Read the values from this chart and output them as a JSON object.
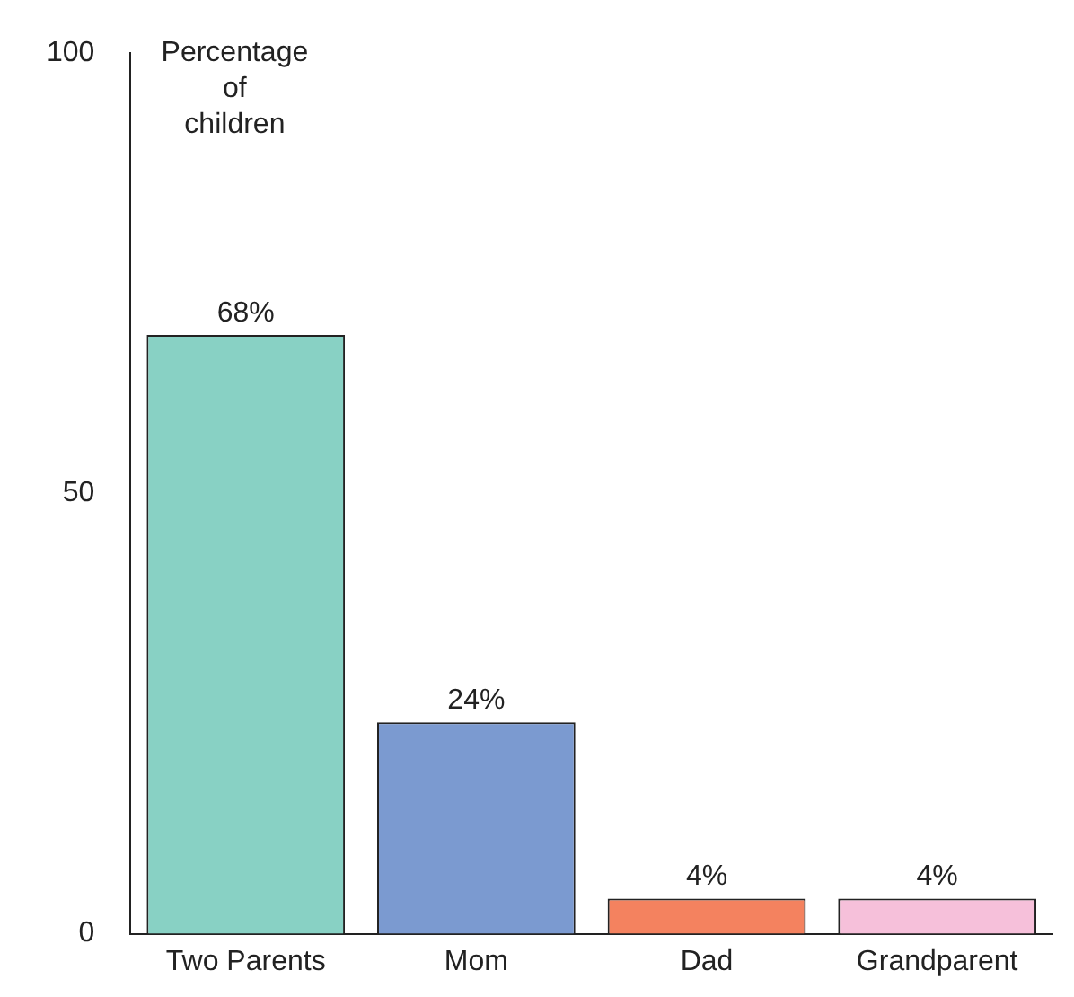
{
  "chart_data": {
    "type": "bar",
    "ylabel": "Percentage\nof\nchildren",
    "categories": [
      "Two Parents",
      "Mom",
      "Dad",
      "Grandparent"
    ],
    "values": [
      68,
      24,
      4,
      4
    ],
    "colors": [
      "#88d1c4",
      "#7b9ad0",
      "#f4825f",
      "#f6c0da"
    ],
    "value_labels": [
      "68%",
      "24%",
      "4%",
      "4%"
    ],
    "ylim": [
      0,
      100
    ],
    "yticks": [
      0,
      50,
      100
    ],
    "grid": false,
    "legend": false
  }
}
